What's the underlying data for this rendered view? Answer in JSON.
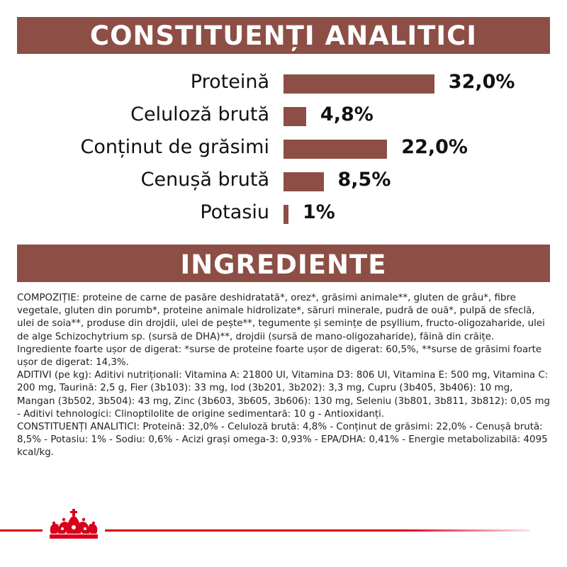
{
  "analitici": {
    "title": "CONSTITUENȚI ANALITICI",
    "rows": [
      {
        "label": "Proteină",
        "value": "32,0%",
        "percent": 32.0
      },
      {
        "label": "Celuloză brută",
        "value": "4,8%",
        "percent": 4.8
      },
      {
        "label": "Conținut de grăsimi",
        "value": "22,0%",
        "percent": 22.0
      },
      {
        "label": "Cenușă brută",
        "value": "8,5%",
        "percent": 8.5
      },
      {
        "label": "Potasiu",
        "value": "1%",
        "percent": 1.0
      }
    ]
  },
  "ingrediente": {
    "title": "INGREDIENTE",
    "text": "COMPOZIȚIE: proteine de carne de pasăre deshidratată*, orez*, grăsimi animale**, gluten de grâu*, fibre vegetale, gluten din porumb*, proteine animale hidrolizate*, săruri minerale, pudră de ouă*, pulpă de sfeclă, ulei de soia**, produse din drojdii, ulei de pește**, tegumente și semințe de psyllium, fructo-oligozaharide, ulei de alge Schizochytrium sp. (sursă de DHA)**, drojdii (sursă de mano-oligozaharide), făină din crăițe.\nIngrediente foarte ușor de digerat: *surse de proteine foarte ușor de digerat: 60,5%, **surse de grăsimi foarte ușor de digerat: 14,3%.\nADITIVI (pe kg): Aditivi nutriționali: Vitamina A: 21800 UI, Vitamina D3: 806 UI, Vitamina E: 500 mg, Vitamina C: 200 mg, Taurină: 2,5 g, Fier (3b103): 33 mg, Iod (3b201, 3b202): 3,3 mg, Cupru (3b405, 3b406): 10 mg, Mangan (3b502, 3b504): 43 mg, Zinc (3b603, 3b605, 3b606): 130 mg, Seleniu (3b801, 3b811, 3b812): 0,05 mg - Aditivi tehnologici: Clinoptilolite de origine sedimentară: 10 g - Antioxidanți.\nCONSTITUENȚI ANALITICI: Proteină: 32,0% - Celuloză brută: 4,8% - Conținut de grăsimi: 22,0% - Cenușă brută: 8,5% - Potasiu: 1% - Sodiu: 0,6% - Acizi grași omega-3: 0,93% - EPA/DHA: 0,41% - Energie metabolizabilă: 4095 kcal/kg."
  },
  "colors": {
    "banner": "#8c4e45",
    "bar": "#8c4e45",
    "brand_red": "#d8001a"
  },
  "footer": {
    "logo_icon": "crown-logo-icon"
  }
}
